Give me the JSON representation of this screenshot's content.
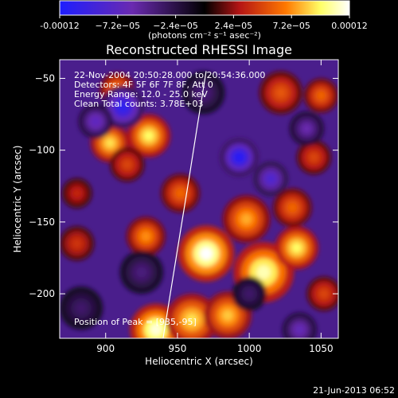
{
  "chart_data": {
    "type": "heatmap",
    "title": "Reconstructed RHESSI Image",
    "colorbar": {
      "ticks": [
        "-0.00012",
        "−7.2e−05",
        "−2.4e−05",
        "2.4e−05",
        "7.2e−05",
        "0.00012"
      ],
      "tick_values": [
        -0.00012,
        -7.2e-05,
        -2.4e-05,
        2.4e-05,
        7.2e-05,
        0.00012
      ],
      "range": [
        -0.00012,
        0.00012
      ],
      "unit_label": "(photons cm⁻² s⁻¹ asec⁻²)",
      "colors": [
        "#1e1eff",
        "#6a2ab0",
        "#000000",
        "#b41414",
        "#ff7800",
        "#ffff66",
        "#ffffff"
      ]
    },
    "xlabel": "Heliocentric X (arcsec)",
    "ylabel": "Heliocentric Y (arcsec)",
    "xlim": [
      868,
      1062
    ],
    "ylim": [
      -231,
      -37
    ],
    "xticks": [
      900,
      950,
      1000,
      1050
    ],
    "yticks": [
      -50,
      -100,
      -150,
      -200
    ],
    "annotations": [
      "22-Nov-2004 20:50:28.000 to 20:54:36.000",
      "Detectors: 4F 5F 6F 7F 8F, Att 0",
      "Energy Range: 12.0 - 25.0 keV",
      "Clean    Total counts: 3.78E+03"
    ],
    "peak_label": "Position of Peak = [935,-95]",
    "limb_curve": {
      "x": [
        940,
        946,
        952,
        958,
        964,
        970
      ],
      "y": [
        -231,
        -194,
        -157,
        -120,
        -82,
        -45
      ]
    },
    "blobs": [
      {
        "x": 970,
        "y": -172,
        "v": 1.0,
        "r": 13
      },
      {
        "x": 1010,
        "y": -185,
        "v": 0.9,
        "r": 14
      },
      {
        "x": 1033,
        "y": -168,
        "v": 0.8,
        "r": 10
      },
      {
        "x": 903,
        "y": -95,
        "v": 0.75,
        "r": 9
      },
      {
        "x": 930,
        "y": -90,
        "v": 0.8,
        "r": 10
      },
      {
        "x": 935,
        "y": -225,
        "v": 0.95,
        "r": 12
      },
      {
        "x": 960,
        "y": -218,
        "v": 0.75,
        "r": 12
      },
      {
        "x": 985,
        "y": -215,
        "v": 0.7,
        "r": 11
      },
      {
        "x": 998,
        "y": -148,
        "v": 0.65,
        "r": 11
      },
      {
        "x": 1030,
        "y": -140,
        "v": 0.5,
        "r": 9
      },
      {
        "x": 1022,
        "y": -60,
        "v": 0.45,
        "r": 10
      },
      {
        "x": 1050,
        "y": -62,
        "v": 0.5,
        "r": 8
      },
      {
        "x": 928,
        "y": -160,
        "v": 0.6,
        "r": 9
      },
      {
        "x": 952,
        "y": -130,
        "v": 0.5,
        "r": 9
      },
      {
        "x": 880,
        "y": -165,
        "v": 0.35,
        "r": 8
      },
      {
        "x": 908,
        "y": -58,
        "v": 0.6,
        "r": 8
      },
      {
        "x": 1045,
        "y": -105,
        "v": 0.4,
        "r": 8
      },
      {
        "x": 1052,
        "y": -200,
        "v": 0.4,
        "r": 8
      },
      {
        "x": 915,
        "y": -110,
        "v": 0.4,
        "r": 8
      },
      {
        "x": 880,
        "y": -130,
        "v": 0.3,
        "r": 7
      },
      {
        "x": 912,
        "y": -70,
        "v": -0.9,
        "r": 10
      },
      {
        "x": 893,
        "y": -80,
        "v": -0.6,
        "r": 8
      },
      {
        "x": 993,
        "y": -105,
        "v": -0.95,
        "r": 9
      },
      {
        "x": 1015,
        "y": -120,
        "v": -0.7,
        "r": 8
      },
      {
        "x": 1040,
        "y": -85,
        "v": -0.5,
        "r": 8
      },
      {
        "x": 1035,
        "y": -225,
        "v": -0.55,
        "r": 8
      },
      {
        "x": 925,
        "y": -185,
        "v": -0.35,
        "r": 10
      },
      {
        "x": 883,
        "y": -210,
        "v": -0.3,
        "r": 10
      },
      {
        "x": 968,
        "y": -60,
        "v": -0.35,
        "r": 10
      },
      {
        "x": 1000,
        "y": -200,
        "v": -0.3,
        "r": 8
      }
    ]
  },
  "footer": {
    "timestamp": "21-Jun-2013 06:52"
  }
}
